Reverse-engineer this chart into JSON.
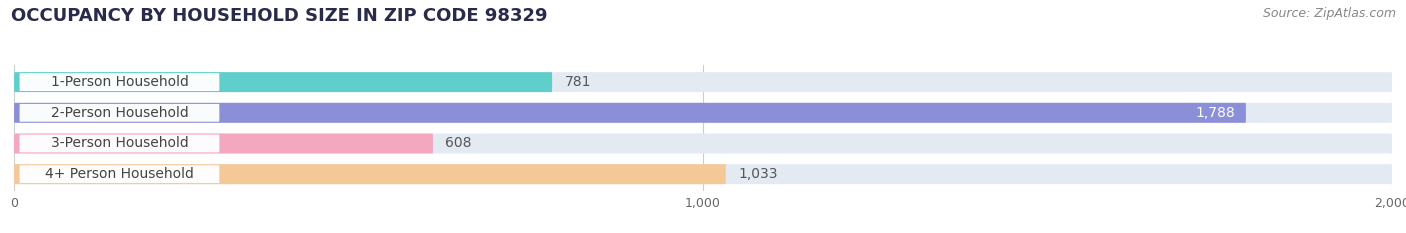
{
  "title": "OCCUPANCY BY HOUSEHOLD SIZE IN ZIP CODE 98329",
  "source": "Source: ZipAtlas.com",
  "categories": [
    "1-Person Household",
    "2-Person Household",
    "3-Person Household",
    "4+ Person Household"
  ],
  "values": [
    781,
    1788,
    608,
    1033
  ],
  "bar_colors": [
    "#60ceca",
    "#8b8fd8",
    "#f4a8c0",
    "#f5c898"
  ],
  "bar_bg_color": "#e4eaf2",
  "label_bg_color": "#ffffff",
  "xlim": [
    0,
    2000
  ],
  "xticks": [
    0,
    1000,
    2000
  ],
  "xtick_labels": [
    "0",
    "1,000",
    "2,000"
  ],
  "title_fontsize": 13,
  "source_fontsize": 9,
  "label_fontsize": 10,
  "value_fontsize": 10,
  "figsize": [
    14.06,
    2.33
  ],
  "dpi": 100,
  "bg_color": "#ffffff"
}
